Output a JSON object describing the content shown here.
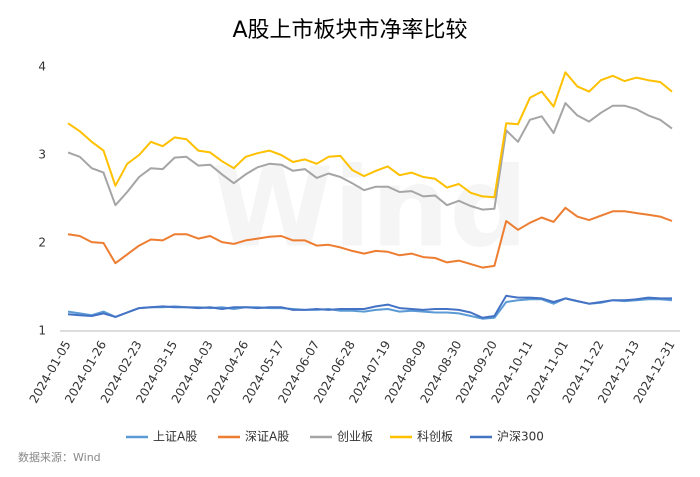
{
  "chart_data": {
    "type": "line",
    "title": "A股上市板块市净率比较",
    "source": "数据来源：Wind",
    "watermark": "Wind",
    "categories": [
      "2024-01-05",
      null,
      null,
      "2024-01-26",
      null,
      null,
      "2024-02-23",
      null,
      null,
      "2024-03-15",
      null,
      null,
      "2024-04-03",
      null,
      null,
      "2024-04-26",
      null,
      null,
      "2024-05-17",
      null,
      null,
      "2024-06-07",
      null,
      null,
      "2024-06-28",
      null,
      null,
      "2024-07-19",
      null,
      null,
      "2024-08-09",
      null,
      null,
      "2024-08-30",
      null,
      null,
      "2024-09-20",
      null,
      null,
      "2024-10-11",
      null,
      null,
      "2024-11-01",
      null,
      null,
      "2024-11-22",
      null,
      null,
      "2024-12-13",
      null,
      null,
      "2024-12-31"
    ],
    "series": [
      {
        "name": "上证A股",
        "color": "#5b9bd5",
        "values": [
          1.22,
          1.2,
          1.18,
          1.22,
          1.16,
          1.21,
          1.26,
          1.27,
          1.27,
          1.28,
          1.27,
          1.27,
          1.26,
          1.27,
          1.25,
          1.27,
          1.27,
          1.26,
          1.26,
          1.25,
          1.24,
          1.24,
          1.25,
          1.23,
          1.23,
          1.22,
          1.24,
          1.25,
          1.22,
          1.23,
          1.22,
          1.21,
          1.21,
          1.2,
          1.17,
          1.14,
          1.15,
          1.33,
          1.35,
          1.36,
          1.36,
          1.31,
          1.37,
          1.34,
          1.31,
          1.32,
          1.35,
          1.34,
          1.35,
          1.36,
          1.36,
          1.35
        ]
      },
      {
        "name": "深证A股",
        "color": "#ed7d31",
        "values": [
          2.1,
          2.08,
          2.01,
          2.0,
          1.77,
          1.87,
          1.97,
          2.04,
          2.03,
          2.1,
          2.1,
          2.05,
          2.08,
          2.01,
          1.99,
          2.03,
          2.05,
          2.07,
          2.08,
          2.03,
          2.03,
          1.97,
          1.98,
          1.95,
          1.91,
          1.88,
          1.91,
          1.9,
          1.86,
          1.88,
          1.84,
          1.83,
          1.78,
          1.8,
          1.76,
          1.72,
          1.74,
          2.25,
          2.15,
          2.23,
          2.29,
          2.24,
          2.4,
          2.3,
          2.26,
          2.31,
          2.36,
          2.36,
          2.34,
          2.32,
          2.3,
          2.25
        ]
      },
      {
        "name": "创业板",
        "color": "#a5a5a5",
        "values": [
          3.03,
          2.98,
          2.85,
          2.8,
          2.43,
          2.58,
          2.75,
          2.85,
          2.84,
          2.97,
          2.98,
          2.88,
          2.89,
          2.78,
          2.68,
          2.78,
          2.86,
          2.9,
          2.89,
          2.82,
          2.84,
          2.74,
          2.79,
          2.75,
          2.68,
          2.6,
          2.64,
          2.64,
          2.58,
          2.59,
          2.53,
          2.54,
          2.43,
          2.48,
          2.42,
          2.38,
          2.39,
          3.28,
          3.15,
          3.4,
          3.44,
          3.25,
          3.59,
          3.45,
          3.38,
          3.48,
          3.56,
          3.56,
          3.52,
          3.45,
          3.4,
          3.3
        ]
      },
      {
        "name": "科创板",
        "color": "#ffc000",
        "values": [
          3.36,
          3.27,
          3.15,
          3.05,
          2.65,
          2.9,
          3.0,
          3.15,
          3.1,
          3.2,
          3.18,
          3.05,
          3.03,
          2.93,
          2.85,
          2.98,
          3.02,
          3.05,
          3.0,
          2.92,
          2.95,
          2.9,
          2.98,
          2.99,
          2.83,
          2.76,
          2.82,
          2.87,
          2.77,
          2.8,
          2.75,
          2.73,
          2.63,
          2.67,
          2.57,
          2.53,
          2.52,
          3.36,
          3.35,
          3.65,
          3.72,
          3.55,
          3.94,
          3.78,
          3.72,
          3.85,
          3.9,
          3.84,
          3.88,
          3.85,
          3.83,
          3.72
        ]
      },
      {
        "name": "沪深300",
        "color": "#4472c4",
        "values": [
          1.19,
          1.18,
          1.17,
          1.2,
          1.16,
          1.21,
          1.26,
          1.27,
          1.28,
          1.27,
          1.27,
          1.26,
          1.27,
          1.25,
          1.27,
          1.27,
          1.26,
          1.27,
          1.27,
          1.24,
          1.24,
          1.25,
          1.24,
          1.25,
          1.25,
          1.25,
          1.28,
          1.3,
          1.26,
          1.25,
          1.24,
          1.25,
          1.25,
          1.24,
          1.21,
          1.15,
          1.17,
          1.4,
          1.38,
          1.38,
          1.37,
          1.33,
          1.37,
          1.34,
          1.31,
          1.33,
          1.35,
          1.35,
          1.36,
          1.38,
          1.37,
          1.37
        ]
      }
    ],
    "ylim": [
      1,
      4.25
    ],
    "yticks": [
      1,
      2,
      3,
      4
    ],
    "grid": false,
    "legend": "bottom"
  }
}
